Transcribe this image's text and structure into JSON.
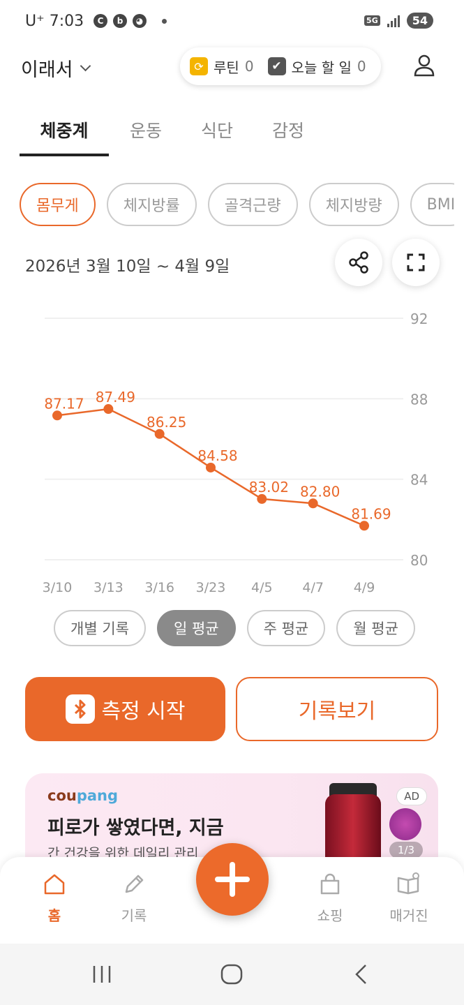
{
  "status_bar": {
    "carrier": "U⁺",
    "time": "7:03",
    "notif_icons": [
      "c-icon",
      "b-icon",
      "cat-icon"
    ],
    "network": "5G",
    "battery": "54"
  },
  "header": {
    "profile_name": "이래서",
    "routine_label": "루틴",
    "routine_count": "0",
    "todo_label": "오늘 할 일",
    "todo_count": "0"
  },
  "tabs": [
    {
      "label": "체중계",
      "active": true
    },
    {
      "label": "운동",
      "active": false
    },
    {
      "label": "식단",
      "active": false
    },
    {
      "label": "감정",
      "active": false
    }
  ],
  "chips": [
    {
      "label": "몸무게",
      "active": true
    },
    {
      "label": "체지방률",
      "active": false
    },
    {
      "label": "골격근량",
      "active": false
    },
    {
      "label": "체지방량",
      "active": false
    },
    {
      "label": "BMI",
      "active": false
    }
  ],
  "date_range": "2026년 3월 10일 ~ 4월 9일",
  "chart_data": {
    "type": "line",
    "categories": [
      "3/10",
      "3/13",
      "3/16",
      "3/23",
      "4/5",
      "4/7",
      "4/9"
    ],
    "series": [
      {
        "values": [
          87.17,
          87.49,
          86.25,
          84.58,
          83.02,
          82.8,
          81.69
        ],
        "color": "#e9682a"
      }
    ],
    "value_labels": [
      "87.17",
      "87.49",
      "86.25",
      "84.58",
      "83.02",
      "82.80",
      "81.69"
    ],
    "ylim": [
      80,
      92
    ],
    "yticks": [
      "92",
      "88",
      "84",
      "80"
    ],
    "ytick_values": [
      92,
      88,
      84,
      80
    ],
    "grid": true,
    "y_axis_side": "right"
  },
  "avg_toggles": [
    {
      "label": "개별 기록",
      "active": false
    },
    {
      "label": "일 평균",
      "active": true
    },
    {
      "label": "주 평균",
      "active": false
    },
    {
      "label": "월 평균",
      "active": false
    }
  ],
  "actions": {
    "measure": "측정 시작",
    "records": "기록보기"
  },
  "ad": {
    "brand_parts": [
      "cou",
      "pang"
    ],
    "headline": "피로가 쌓였다면, 지금",
    "sub": "간 건강을 위한 데일리 관리",
    "badge": "AD",
    "pager": "1/3"
  },
  "bottom_nav": [
    {
      "label": "홈",
      "icon": "home-icon",
      "active": true
    },
    {
      "label": "기록",
      "icon": "pencil-icon",
      "active": false
    },
    {
      "label": "쇼핑",
      "icon": "shopping-bag-icon",
      "active": false
    },
    {
      "label": "매거진",
      "icon": "magazine-icon",
      "active": false
    }
  ],
  "colors": {
    "accent": "#e9682a",
    "text": "#222222",
    "muted": "#999999"
  }
}
